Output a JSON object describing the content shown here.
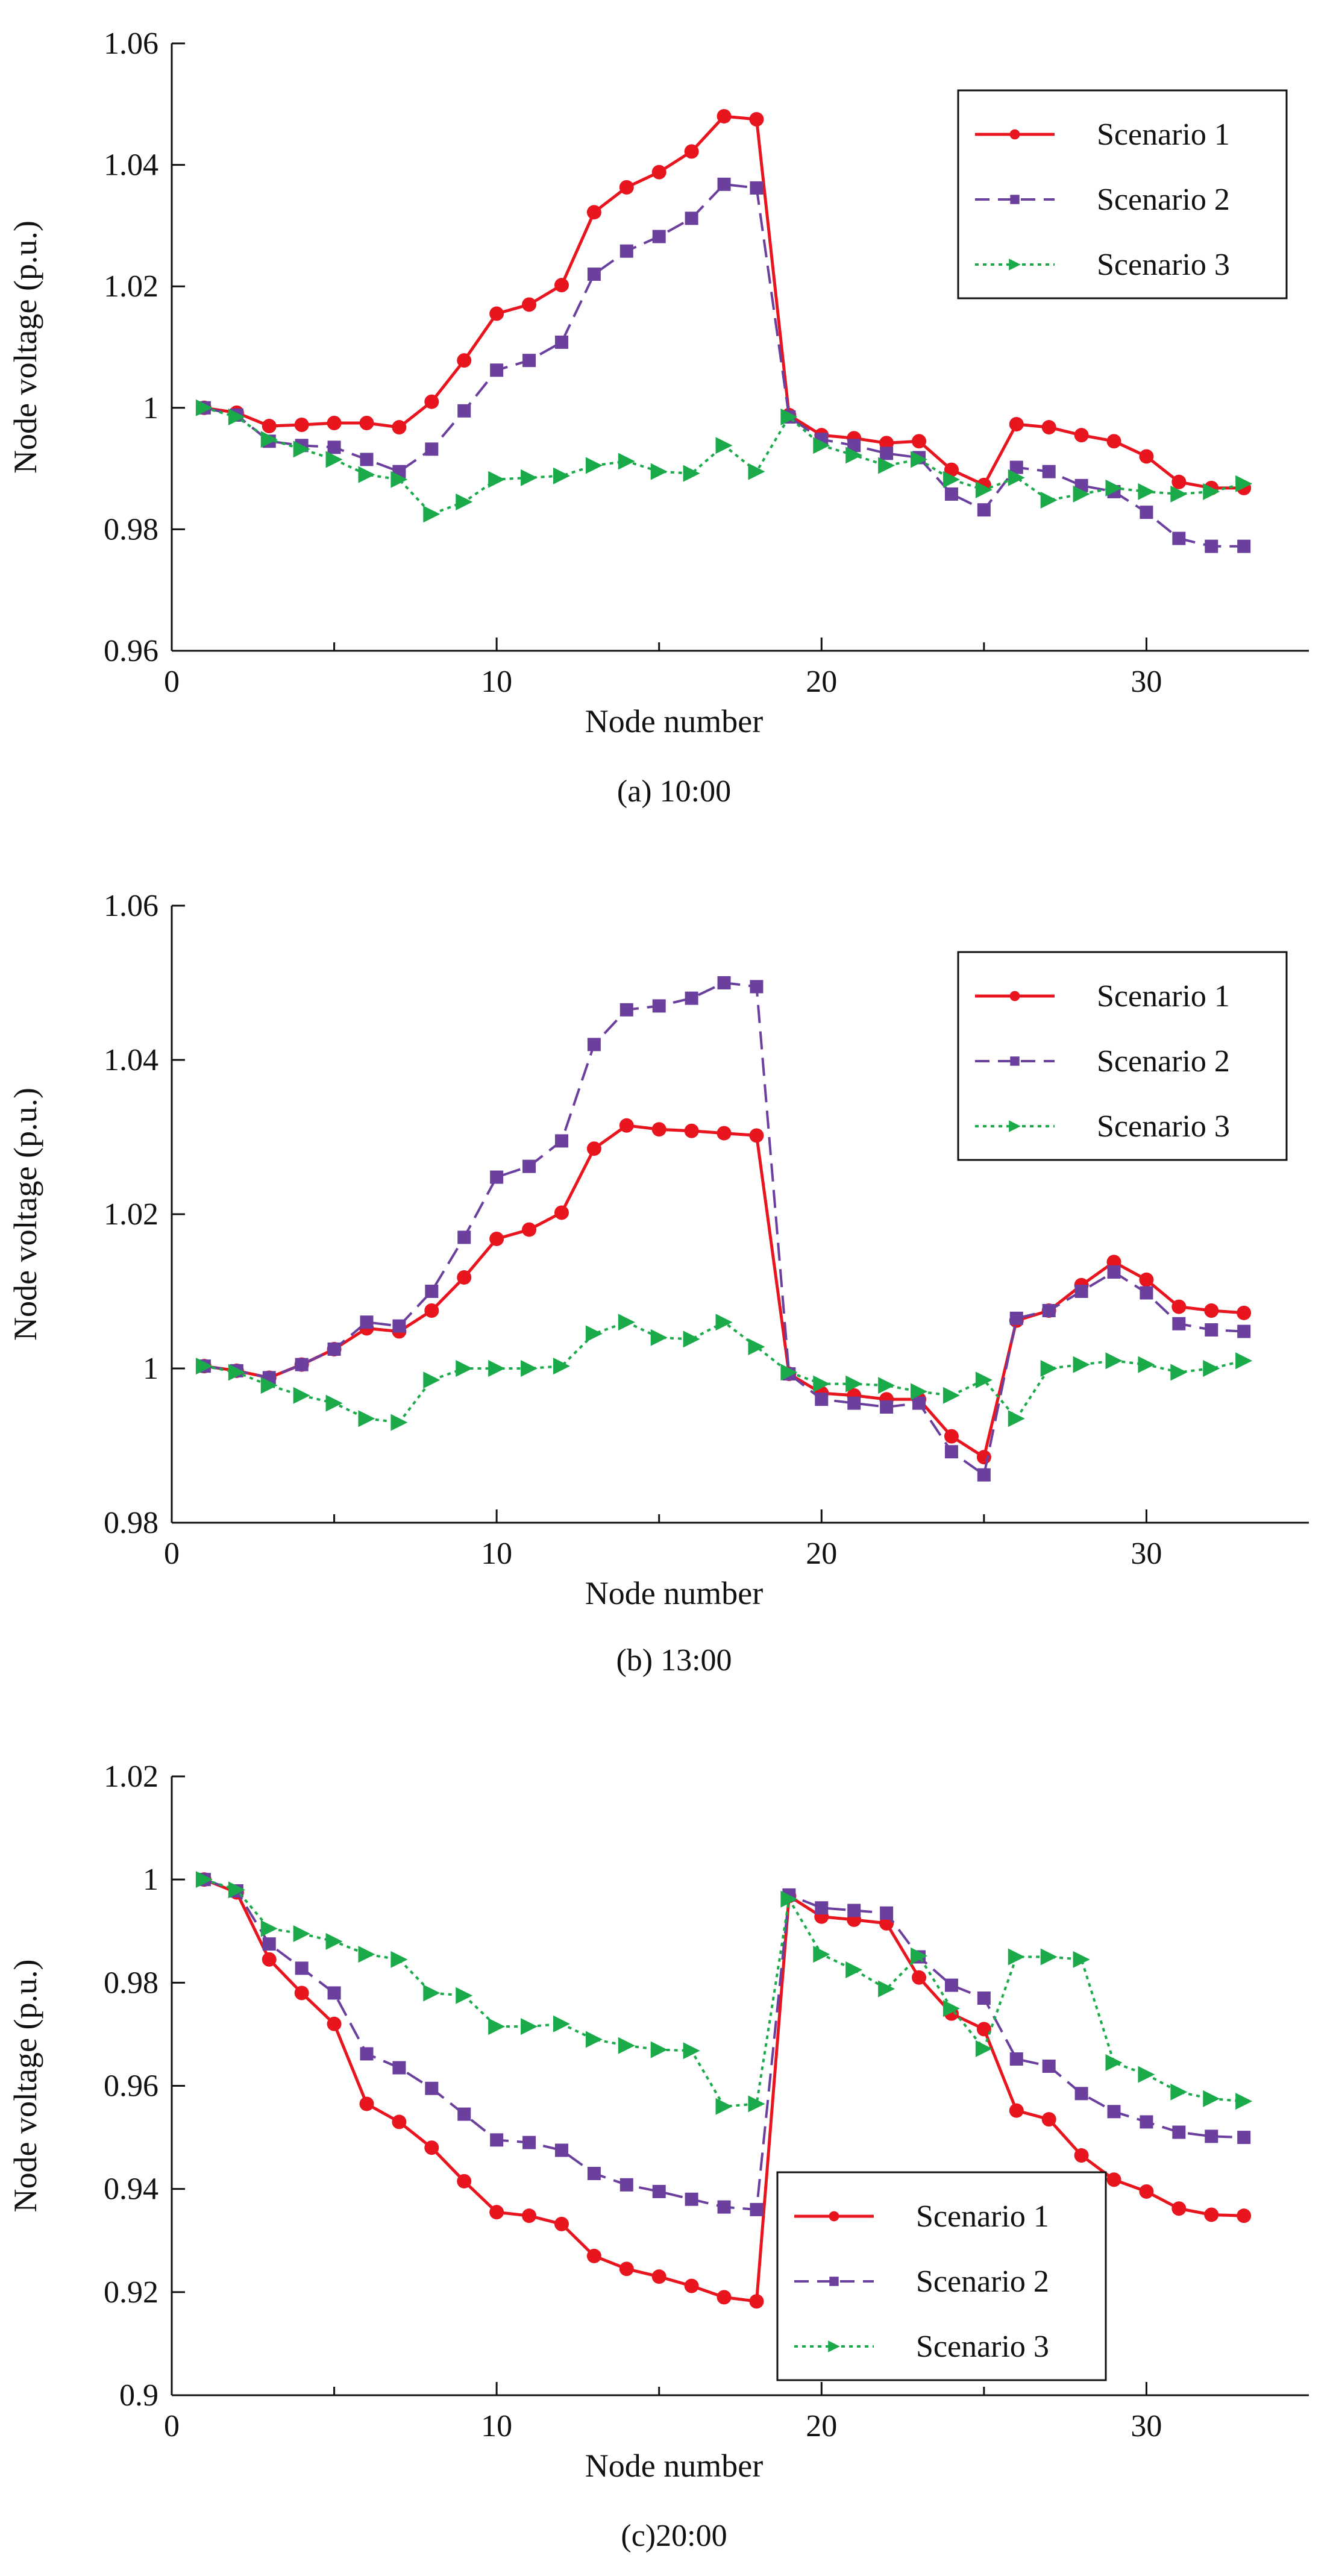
{
  "chart_data": [
    {
      "type": "line",
      "caption": "(a) 10:00",
      "xlabel": "Node number",
      "ylabel": "Node voltage (p.u.)",
      "xlim": [
        0,
        35
      ],
      "ylim": [
        0.96,
        1.06
      ],
      "xticks": [
        0,
        10,
        20,
        30
      ],
      "yticks": [
        0.96,
        0.98,
        1,
        1.02,
        1.04,
        1.06
      ],
      "ytick_labels": [
        "0.96",
        "0.98",
        "1",
        "1.02",
        "1.04",
        "1.06"
      ],
      "legend_position": "top-right",
      "x": [
        1,
        2,
        3,
        4,
        5,
        6,
        7,
        8,
        9,
        10,
        11,
        12,
        13,
        14,
        15,
        16,
        17,
        18,
        19,
        20,
        21,
        22,
        23,
        24,
        25,
        26,
        27,
        28,
        29,
        30,
        31,
        32,
        33
      ],
      "series": [
        {
          "name": "Scenario 1",
          "color": "#e8141e",
          "values": [
            1.0,
            0.9992,
            0.997,
            0.9972,
            0.9975,
            0.9975,
            0.9968,
            1.001,
            1.0078,
            1.0155,
            1.017,
            1.0202,
            1.0322,
            1.0363,
            1.0388,
            1.0422,
            1.048,
            1.0475,
            0.9988,
            0.9955,
            0.995,
            0.9942,
            0.9945,
            0.9898,
            0.9873,
            0.9973,
            0.9968,
            0.9955,
            0.9945,
            0.992,
            0.9878,
            0.9868,
            0.9868
          ]
        },
        {
          "name": "Scenario 2",
          "color": "#6b3f9e",
          "values": [
            1.0,
            0.9988,
            0.9945,
            0.9938,
            0.9935,
            0.9915,
            0.9895,
            0.9932,
            0.9995,
            1.0062,
            1.0078,
            1.0108,
            1.022,
            1.0258,
            1.0282,
            1.0312,
            1.0368,
            1.0362,
            0.9985,
            0.9948,
            0.9938,
            0.9925,
            0.9918,
            0.9858,
            0.9832,
            0.9902,
            0.9895,
            0.9872,
            0.9862,
            0.9828,
            0.9785,
            0.9772,
            0.9772
          ]
        },
        {
          "name": "Scenario 3",
          "color": "#1aaa4a",
          "values": [
            1.0,
            0.9985,
            0.9948,
            0.9932,
            0.9915,
            0.989,
            0.9882,
            0.9825,
            0.9845,
            0.9882,
            0.9885,
            0.9888,
            0.9905,
            0.9912,
            0.9895,
            0.9892,
            0.9938,
            0.9895,
            0.9985,
            0.9938,
            0.9922,
            0.9905,
            0.9915,
            0.9882,
            0.9865,
            0.9885,
            0.9848,
            0.9858,
            0.9868,
            0.9862,
            0.9858,
            0.9862,
            0.9875
          ]
        }
      ]
    },
    {
      "type": "line",
      "caption": "(b) 13:00",
      "xlabel": "Node number",
      "ylabel": "Node voltage (p.u.)",
      "xlim": [
        0,
        35
      ],
      "ylim": [
        0.98,
        1.06
      ],
      "xticks": [
        0,
        10,
        20,
        30
      ],
      "yticks": [
        0.98,
        1,
        1.02,
        1.04,
        1.06
      ],
      "ytick_labels": [
        "0.98",
        "1",
        "1.02",
        "1.04",
        "1.06"
      ],
      "legend_position": "top-right",
      "x": [
        1,
        2,
        3,
        4,
        5,
        6,
        7,
        8,
        9,
        10,
        11,
        12,
        13,
        14,
        15,
        16,
        17,
        18,
        19,
        20,
        21,
        22,
        23,
        24,
        25,
        26,
        27,
        28,
        29,
        30,
        31,
        32,
        33
      ],
      "series": [
        {
          "name": "Scenario 1",
          "color": "#e8141e",
          "values": [
            1.0003,
            0.9997,
            0.9988,
            1.0005,
            1.0025,
            1.0052,
            1.0048,
            1.0075,
            1.0118,
            1.0168,
            1.018,
            1.0202,
            1.0285,
            1.0315,
            1.031,
            1.0308,
            1.0305,
            1.0302,
            0.9993,
            0.9968,
            0.9965,
            0.996,
            0.996,
            0.9912,
            0.9885,
            1.0062,
            1.0075,
            1.0108,
            1.0138,
            1.0115,
            1.008,
            1.0075,
            1.0072
          ]
        },
        {
          "name": "Scenario 2",
          "color": "#6b3f9e",
          "values": [
            1.0003,
            0.9997,
            0.9988,
            1.0005,
            1.0025,
            1.006,
            1.0055,
            1.01,
            1.017,
            1.0248,
            1.0262,
            1.0295,
            1.042,
            1.0465,
            1.047,
            1.048,
            1.05,
            1.0495,
            0.9993,
            0.996,
            0.9955,
            0.995,
            0.9955,
            0.9892,
            0.9862,
            1.0065,
            1.0075,
            1.01,
            1.0125,
            1.0098,
            1.0058,
            1.005,
            1.0048
          ]
        },
        {
          "name": "Scenario 3",
          "color": "#1aaa4a",
          "values": [
            1.0003,
            0.9995,
            0.9978,
            0.9965,
            0.9955,
            0.9935,
            0.993,
            0.9985,
            1.0,
            1.0,
            1.0,
            1.0003,
            1.0045,
            1.006,
            1.004,
            1.0038,
            1.006,
            1.0028,
            0.9995,
            0.998,
            0.998,
            0.9978,
            0.997,
            0.9965,
            0.9985,
            0.9935,
            1.0,
            1.0005,
            1.001,
            1.0005,
            0.9995,
            1.0,
            1.001
          ]
        }
      ]
    },
    {
      "type": "line",
      "caption": "(c)20:00",
      "xlabel": "Node number",
      "ylabel": "Node voltage (p.u.)",
      "xlim": [
        0,
        35
      ],
      "ylim": [
        0.9,
        1.02
      ],
      "xticks": [
        0,
        10,
        20,
        30
      ],
      "yticks": [
        0.9,
        0.92,
        0.94,
        0.96,
        0.98,
        1,
        1.02
      ],
      "ytick_labels": [
        "0.9",
        "0.92",
        "0.94",
        "0.96",
        "0.98",
        "1",
        "1.02"
      ],
      "legend_position": "bottom-center",
      "x": [
        1,
        2,
        3,
        4,
        5,
        6,
        7,
        8,
        9,
        10,
        11,
        12,
        13,
        14,
        15,
        16,
        17,
        18,
        19,
        20,
        21,
        22,
        23,
        24,
        25,
        26,
        27,
        28,
        29,
        30,
        31,
        32,
        33
      ],
      "series": [
        {
          "name": "Scenario 1",
          "color": "#e8141e",
          "values": [
            1.0,
            0.9975,
            0.9845,
            0.978,
            0.972,
            0.9565,
            0.953,
            0.948,
            0.9415,
            0.9355,
            0.9348,
            0.9332,
            0.927,
            0.9245,
            0.923,
            0.9212,
            0.919,
            0.9182,
            0.9968,
            0.9928,
            0.9922,
            0.9915,
            0.981,
            0.974,
            0.971,
            0.9552,
            0.9535,
            0.9465,
            0.9418,
            0.9395,
            0.9362,
            0.935,
            0.9348
          ]
        },
        {
          "name": "Scenario 2",
          "color": "#6b3f9e",
          "values": [
            1.0,
            0.9978,
            0.9875,
            0.9828,
            0.978,
            0.9662,
            0.9635,
            0.9595,
            0.9545,
            0.9495,
            0.949,
            0.9475,
            0.943,
            0.9408,
            0.9395,
            0.938,
            0.9365,
            0.936,
            0.997,
            0.9945,
            0.994,
            0.9935,
            0.985,
            0.9795,
            0.977,
            0.9652,
            0.9638,
            0.9585,
            0.955,
            0.953,
            0.951,
            0.9502,
            0.95
          ]
        },
        {
          "name": "Scenario 3",
          "color": "#1aaa4a",
          "values": [
            1.0,
            0.998,
            0.9905,
            0.9895,
            0.988,
            0.9855,
            0.9845,
            0.978,
            0.9775,
            0.9715,
            0.9715,
            0.972,
            0.969,
            0.9678,
            0.967,
            0.9668,
            0.956,
            0.9565,
            0.9962,
            0.9855,
            0.9825,
            0.9788,
            0.9852,
            0.975,
            0.9672,
            0.985,
            0.985,
            0.9845,
            0.9645,
            0.9622,
            0.9588,
            0.9575,
            0.957
          ]
        }
      ]
    }
  ]
}
